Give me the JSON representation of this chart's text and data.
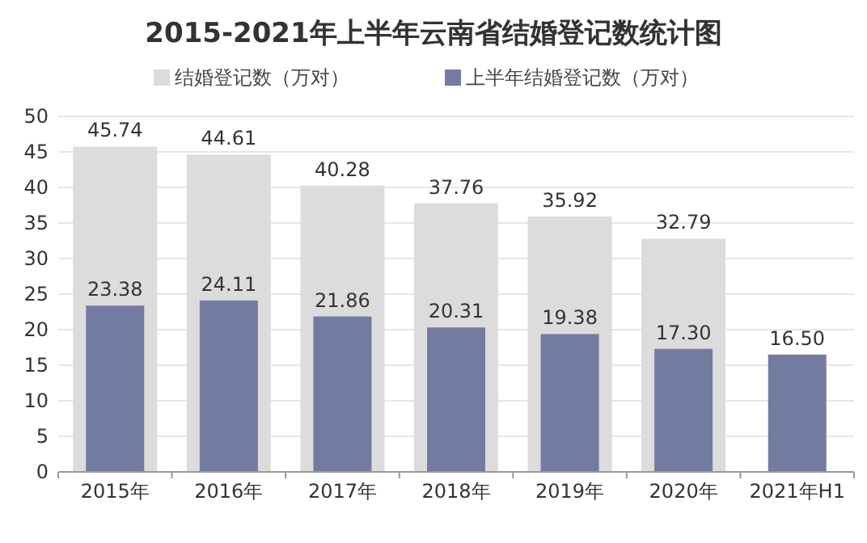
{
  "chart_data": {
    "type": "bar",
    "title": "2015-2021年上半年云南省结婚登记数统计图",
    "categories": [
      "2015年",
      "2016年",
      "2017年",
      "2018年",
      "2019年",
      "2020年",
      "2021年H1"
    ],
    "series": [
      {
        "name": "结婚登记数（万对）",
        "color": "#dcdcdc",
        "values": [
          45.74,
          44.61,
          40.28,
          37.76,
          35.92,
          32.79,
          null
        ],
        "value_labels": [
          "45.74",
          "44.61",
          "40.28",
          "37.76",
          "35.92",
          "32.79",
          null
        ]
      },
      {
        "name": "上半年结婚登记数（万对）",
        "color": "#737ba0",
        "values": [
          23.38,
          24.11,
          21.86,
          20.31,
          19.38,
          17.3,
          16.5
        ],
        "value_labels": [
          "23.38",
          "24.11",
          "21.86",
          "20.31",
          "19.38",
          "17.30",
          "16.50"
        ]
      }
    ],
    "ylim": [
      0,
      50
    ],
    "yticks": [
      0,
      5,
      10,
      15,
      20,
      25,
      30,
      35,
      40,
      45,
      50
    ],
    "grid": "y",
    "legend": "top"
  }
}
